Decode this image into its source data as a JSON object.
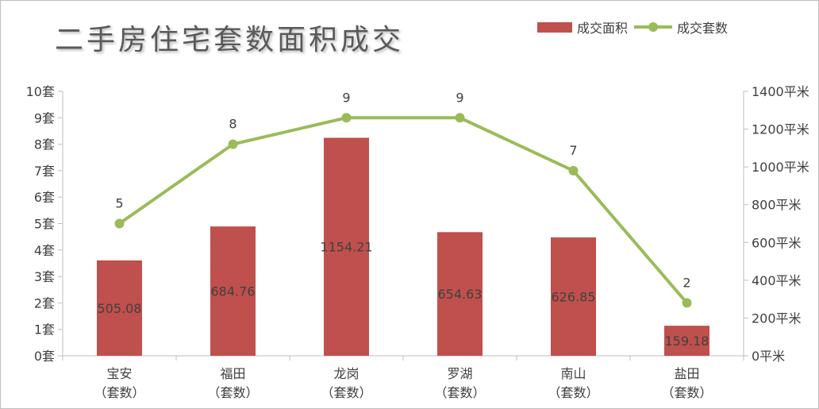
{
  "chart_data": {
    "type": "bar",
    "title": "二手房住宅套数面积成交",
    "categories": [
      "宝安\n（套数）",
      "福田\n（套数）",
      "龙岗\n（套数）",
      "罗湖\n（套数）",
      "南山\n（套数）",
      "盐田\n（套数）"
    ],
    "series": [
      {
        "name": "成交面积",
        "type": "bar",
        "axis": "right",
        "color": "#c0504d",
        "values": [
          505.08,
          684.76,
          1154.21,
          654.63,
          626.85,
          159.18
        ],
        "labels": [
          "505.08",
          "684.76",
          "1154.21",
          "654.63",
          "626.85",
          "159.18"
        ]
      },
      {
        "name": "成交套数",
        "type": "line",
        "axis": "left",
        "color": "#9bbb59",
        "values": [
          5,
          8,
          9,
          9,
          7,
          2
        ],
        "labels": [
          "5",
          "8",
          "9",
          "9",
          "7",
          "2"
        ]
      }
    ],
    "y_left": {
      "range": [
        0,
        10
      ],
      "ticks": [
        0,
        1,
        2,
        3,
        4,
        5,
        6,
        7,
        8,
        9,
        10
      ],
      "tick_labels": [
        "0套",
        "1套",
        "2套",
        "3套",
        "4套",
        "5套",
        "6套",
        "7套",
        "8套",
        "9套",
        "10套"
      ]
    },
    "y_right": {
      "range": [
        0,
        1400
      ],
      "ticks": [
        0,
        200,
        400,
        600,
        800,
        1000,
        1200,
        1400
      ],
      "tick_labels": [
        "0平米",
        "200平米",
        "400平米",
        "600平米",
        "800平米",
        "1000平米",
        "1200平米",
        "1400平米"
      ]
    },
    "grid": false,
    "legend_position": "top-right"
  }
}
